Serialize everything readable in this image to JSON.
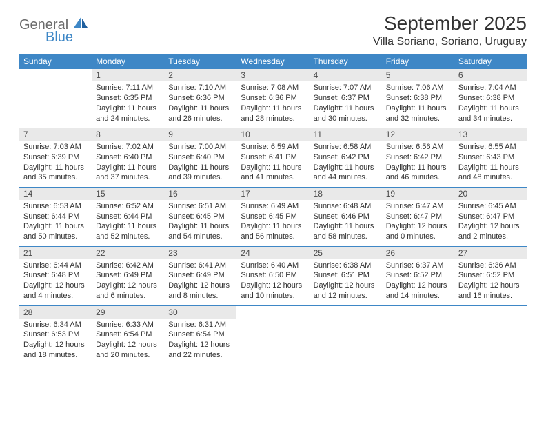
{
  "logo": {
    "main": "General",
    "sub": "Blue"
  },
  "title": {
    "month": "September 2025",
    "location": "Villa Soriano, Soriano, Uruguay"
  },
  "headers": [
    "Sunday",
    "Monday",
    "Tuesday",
    "Wednesday",
    "Thursday",
    "Friday",
    "Saturday"
  ],
  "colors": {
    "header_bg": "#3e87c6",
    "header_text": "#ffffff",
    "daynum_bg": "#e9e9e9",
    "border": "#3e87c6",
    "body_text": "#333333",
    "logo_gray": "#6b6b6b",
    "logo_blue": "#3e87c6",
    "page_bg": "#ffffff"
  },
  "weeks": [
    [
      null,
      {
        "n": "1",
        "sr": "Sunrise: 7:11 AM",
        "ss": "Sunset: 6:35 PM",
        "d1": "Daylight: 11 hours",
        "d2": "and 24 minutes."
      },
      {
        "n": "2",
        "sr": "Sunrise: 7:10 AM",
        "ss": "Sunset: 6:36 PM",
        "d1": "Daylight: 11 hours",
        "d2": "and 26 minutes."
      },
      {
        "n": "3",
        "sr": "Sunrise: 7:08 AM",
        "ss": "Sunset: 6:36 PM",
        "d1": "Daylight: 11 hours",
        "d2": "and 28 minutes."
      },
      {
        "n": "4",
        "sr": "Sunrise: 7:07 AM",
        "ss": "Sunset: 6:37 PM",
        "d1": "Daylight: 11 hours",
        "d2": "and 30 minutes."
      },
      {
        "n": "5",
        "sr": "Sunrise: 7:06 AM",
        "ss": "Sunset: 6:38 PM",
        "d1": "Daylight: 11 hours",
        "d2": "and 32 minutes."
      },
      {
        "n": "6",
        "sr": "Sunrise: 7:04 AM",
        "ss": "Sunset: 6:38 PM",
        "d1": "Daylight: 11 hours",
        "d2": "and 34 minutes."
      }
    ],
    [
      {
        "n": "7",
        "sr": "Sunrise: 7:03 AM",
        "ss": "Sunset: 6:39 PM",
        "d1": "Daylight: 11 hours",
        "d2": "and 35 minutes."
      },
      {
        "n": "8",
        "sr": "Sunrise: 7:02 AM",
        "ss": "Sunset: 6:40 PM",
        "d1": "Daylight: 11 hours",
        "d2": "and 37 minutes."
      },
      {
        "n": "9",
        "sr": "Sunrise: 7:00 AM",
        "ss": "Sunset: 6:40 PM",
        "d1": "Daylight: 11 hours",
        "d2": "and 39 minutes."
      },
      {
        "n": "10",
        "sr": "Sunrise: 6:59 AM",
        "ss": "Sunset: 6:41 PM",
        "d1": "Daylight: 11 hours",
        "d2": "and 41 minutes."
      },
      {
        "n": "11",
        "sr": "Sunrise: 6:58 AM",
        "ss": "Sunset: 6:42 PM",
        "d1": "Daylight: 11 hours",
        "d2": "and 44 minutes."
      },
      {
        "n": "12",
        "sr": "Sunrise: 6:56 AM",
        "ss": "Sunset: 6:42 PM",
        "d1": "Daylight: 11 hours",
        "d2": "and 46 minutes."
      },
      {
        "n": "13",
        "sr": "Sunrise: 6:55 AM",
        "ss": "Sunset: 6:43 PM",
        "d1": "Daylight: 11 hours",
        "d2": "and 48 minutes."
      }
    ],
    [
      {
        "n": "14",
        "sr": "Sunrise: 6:53 AM",
        "ss": "Sunset: 6:44 PM",
        "d1": "Daylight: 11 hours",
        "d2": "and 50 minutes."
      },
      {
        "n": "15",
        "sr": "Sunrise: 6:52 AM",
        "ss": "Sunset: 6:44 PM",
        "d1": "Daylight: 11 hours",
        "d2": "and 52 minutes."
      },
      {
        "n": "16",
        "sr": "Sunrise: 6:51 AM",
        "ss": "Sunset: 6:45 PM",
        "d1": "Daylight: 11 hours",
        "d2": "and 54 minutes."
      },
      {
        "n": "17",
        "sr": "Sunrise: 6:49 AM",
        "ss": "Sunset: 6:45 PM",
        "d1": "Daylight: 11 hours",
        "d2": "and 56 minutes."
      },
      {
        "n": "18",
        "sr": "Sunrise: 6:48 AM",
        "ss": "Sunset: 6:46 PM",
        "d1": "Daylight: 11 hours",
        "d2": "and 58 minutes."
      },
      {
        "n": "19",
        "sr": "Sunrise: 6:47 AM",
        "ss": "Sunset: 6:47 PM",
        "d1": "Daylight: 12 hours",
        "d2": "and 0 minutes."
      },
      {
        "n": "20",
        "sr": "Sunrise: 6:45 AM",
        "ss": "Sunset: 6:47 PM",
        "d1": "Daylight: 12 hours",
        "d2": "and 2 minutes."
      }
    ],
    [
      {
        "n": "21",
        "sr": "Sunrise: 6:44 AM",
        "ss": "Sunset: 6:48 PM",
        "d1": "Daylight: 12 hours",
        "d2": "and 4 minutes."
      },
      {
        "n": "22",
        "sr": "Sunrise: 6:42 AM",
        "ss": "Sunset: 6:49 PM",
        "d1": "Daylight: 12 hours",
        "d2": "and 6 minutes."
      },
      {
        "n": "23",
        "sr": "Sunrise: 6:41 AM",
        "ss": "Sunset: 6:49 PM",
        "d1": "Daylight: 12 hours",
        "d2": "and 8 minutes."
      },
      {
        "n": "24",
        "sr": "Sunrise: 6:40 AM",
        "ss": "Sunset: 6:50 PM",
        "d1": "Daylight: 12 hours",
        "d2": "and 10 minutes."
      },
      {
        "n": "25",
        "sr": "Sunrise: 6:38 AM",
        "ss": "Sunset: 6:51 PM",
        "d1": "Daylight: 12 hours",
        "d2": "and 12 minutes."
      },
      {
        "n": "26",
        "sr": "Sunrise: 6:37 AM",
        "ss": "Sunset: 6:52 PM",
        "d1": "Daylight: 12 hours",
        "d2": "and 14 minutes."
      },
      {
        "n": "27",
        "sr": "Sunrise: 6:36 AM",
        "ss": "Sunset: 6:52 PM",
        "d1": "Daylight: 12 hours",
        "d2": "and 16 minutes."
      }
    ],
    [
      {
        "n": "28",
        "sr": "Sunrise: 6:34 AM",
        "ss": "Sunset: 6:53 PM",
        "d1": "Daylight: 12 hours",
        "d2": "and 18 minutes."
      },
      {
        "n": "29",
        "sr": "Sunrise: 6:33 AM",
        "ss": "Sunset: 6:54 PM",
        "d1": "Daylight: 12 hours",
        "d2": "and 20 minutes."
      },
      {
        "n": "30",
        "sr": "Sunrise: 6:31 AM",
        "ss": "Sunset: 6:54 PM",
        "d1": "Daylight: 12 hours",
        "d2": "and 22 minutes."
      },
      null,
      null,
      null,
      null
    ]
  ]
}
